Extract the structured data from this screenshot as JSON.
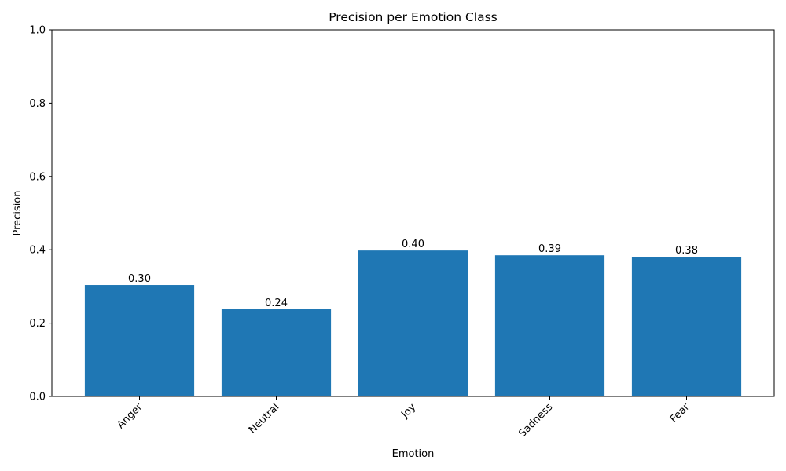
{
  "chart_data": {
    "type": "bar",
    "title": "Precision per Emotion Class",
    "x_label": "Emotion",
    "y_label": "Precision",
    "categories": [
      "Anger",
      "Neutral",
      "Joy",
      "Sadness",
      "Fear"
    ],
    "values": [
      0.304,
      0.238,
      0.398,
      0.385,
      0.381
    ],
    "value_labels": [
      "0.30",
      "0.24",
      "0.40",
      "0.39",
      "0.38"
    ],
    "color": "#1f77b4",
    "ylim": [
      0,
      1
    ],
    "yticks": [
      {
        "value": 0,
        "label": "0.0"
      },
      0.2,
      0.4,
      0.6,
      0.8,
      {
        "value": 1,
        "label": "1.0"
      }
    ]
  }
}
